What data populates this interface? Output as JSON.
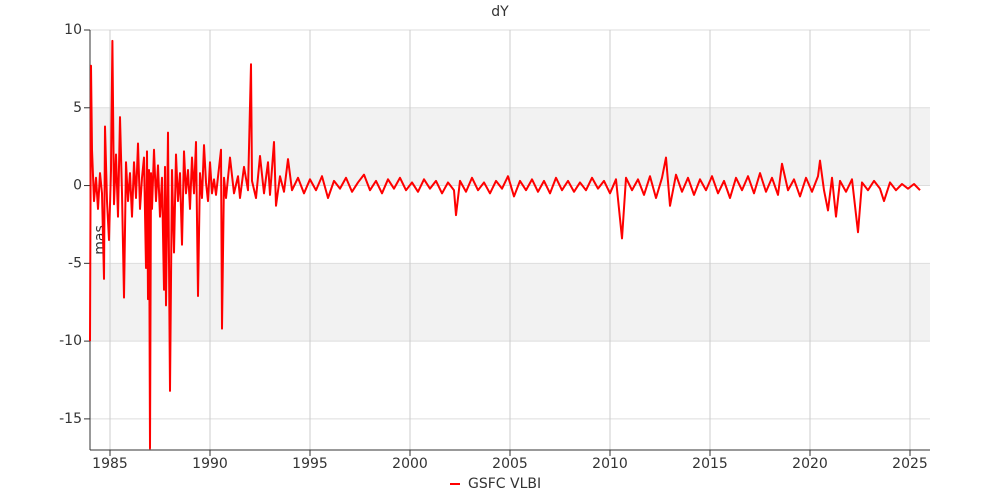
{
  "chart_data": {
    "type": "line",
    "title": "dY",
    "y_label": "mas",
    "xlim": [
      1984,
      2026
    ],
    "xticks": [
      1985,
      1990,
      1995,
      2000,
      2005,
      2010,
      2015,
      2020,
      2025
    ],
    "ylim": [
      -17,
      10
    ],
    "yticks": [
      -15,
      -10,
      -5,
      0,
      5,
      10
    ],
    "grid": true,
    "legend": "bottom",
    "series": [
      {
        "name": "GSFC VLBI",
        "color": "#ff0000",
        "x": [
          1984.0,
          1984.05,
          1984.1,
          1984.2,
          1984.3,
          1984.4,
          1984.5,
          1984.6,
          1984.7,
          1984.75,
          1984.85,
          1984.95,
          1985.05,
          1985.12,
          1985.2,
          1985.3,
          1985.4,
          1985.5,
          1985.6,
          1985.7,
          1985.8,
          1985.9,
          1986.0,
          1986.1,
          1986.2,
          1986.3,
          1986.4,
          1986.5,
          1986.6,
          1986.7,
          1986.8,
          1986.85,
          1986.9,
          1986.95,
          1987.0,
          1987.05,
          1987.1,
          1987.2,
          1987.3,
          1987.4,
          1987.5,
          1987.6,
          1987.7,
          1987.75,
          1987.8,
          1987.9,
          1988.0,
          1988.1,
          1988.2,
          1988.3,
          1988.4,
          1988.5,
          1988.6,
          1988.7,
          1988.8,
          1988.9,
          1989.0,
          1989.1,
          1989.2,
          1989.3,
          1989.4,
          1989.5,
          1989.6,
          1989.7,
          1989.8,
          1989.9,
          1990.0,
          1990.1,
          1990.2,
          1990.3,
          1990.55,
          1990.6,
          1990.7,
          1990.8,
          1991.0,
          1991.2,
          1991.4,
          1991.5,
          1991.7,
          1991.9,
          1992.05,
          1992.1,
          1992.3,
          1992.5,
          1992.7,
          1992.9,
          1993.0,
          1993.2,
          1993.3,
          1993.5,
          1993.7,
          1993.9,
          1994.1,
          1994.4,
          1994.7,
          1995.0,
          1995.3,
          1995.6,
          1995.9,
          1996.2,
          1996.5,
          1996.8,
          1997.1,
          1997.4,
          1997.7,
          1998.0,
          1998.3,
          1998.6,
          1998.9,
          1999.2,
          1999.5,
          1999.8,
          2000.1,
          2000.4,
          2000.7,
          2001.0,
          2001.3,
          2001.6,
          2001.9,
          2002.2,
          2002.3,
          2002.5,
          2002.8,
          2003.1,
          2003.4,
          2003.7,
          2004.0,
          2004.3,
          2004.6,
          2004.9,
          2005.2,
          2005.5,
          2005.8,
          2006.1,
          2006.4,
          2006.7,
          2007.0,
          2007.3,
          2007.6,
          2007.9,
          2008.2,
          2008.5,
          2008.8,
          2009.1,
          2009.4,
          2009.7,
          2010.0,
          2010.3,
          2010.6,
          2010.8,
          2011.1,
          2011.4,
          2011.7,
          2012.0,
          2012.3,
          2012.6,
          2012.8,
          2013.0,
          2013.3,
          2013.6,
          2013.9,
          2014.2,
          2014.5,
          2014.8,
          2015.1,
          2015.4,
          2015.7,
          2016.0,
          2016.3,
          2016.6,
          2016.9,
          2017.2,
          2017.5,
          2017.8,
          2018.1,
          2018.4,
          2018.6,
          2018.9,
          2019.2,
          2019.5,
          2019.8,
          2020.1,
          2020.4,
          2020.5,
          2020.7,
          2020.9,
          2021.1,
          2021.3,
          2021.5,
          2021.8,
          2022.1,
          2022.4,
          2022.6,
          2022.9,
          2023.2,
          2023.5,
          2023.7,
          2024.0,
          2024.3,
          2024.6,
          2024.9,
          2025.2,
          2025.5
        ],
        "values": [
          -10,
          7.7,
          2.3,
          -1,
          0.5,
          -1.5,
          0.8,
          -0.5,
          -6,
          3.8,
          -1,
          -3.5,
          1,
          9.3,
          -1.2,
          2,
          -2,
          4.4,
          -0.5,
          -7.2,
          1.5,
          -1,
          0.8,
          -2,
          1.5,
          -0.8,
          2.7,
          -1.5,
          0.5,
          1.8,
          -5.3,
          2.2,
          -7.3,
          1,
          -16.9,
          0.8,
          -1.5,
          2.3,
          -1,
          1.3,
          -2,
          0.5,
          -6.7,
          1.2,
          -7.7,
          3.4,
          -13.2,
          1,
          -4.3,
          2,
          -1,
          0.8,
          -3.8,
          2.2,
          -0.5,
          1,
          -1.5,
          1.8,
          -0.5,
          2.8,
          -7.1,
          0.8,
          -0.8,
          2.6,
          0.2,
          -1,
          1.5,
          -0.5,
          0.4,
          -0.6,
          2.3,
          -9.2,
          0.5,
          -0.8,
          1.8,
          -0.5,
          0.6,
          -0.8,
          1.2,
          -0.3,
          7.8,
          0.3,
          -0.8,
          1.9,
          -0.5,
          1.5,
          -0.6,
          2.8,
          -1.3,
          0.6,
          -0.4,
          1.7,
          -0.3,
          0.5,
          -0.5,
          0.4,
          -0.3,
          0.6,
          -0.8,
          0.3,
          -0.2,
          0.5,
          -0.4,
          0.2,
          0.7,
          -0.3,
          0.3,
          -0.5,
          0.4,
          -0.2,
          0.5,
          -0.3,
          0.2,
          -0.4,
          0.4,
          -0.2,
          0.3,
          -0.5,
          0.2,
          -0.3,
          -1.9,
          0.3,
          -0.4,
          0.5,
          -0.3,
          0.2,
          -0.5,
          0.3,
          -0.2,
          0.6,
          -0.7,
          0.3,
          -0.3,
          0.4,
          -0.4,
          0.3,
          -0.5,
          0.5,
          -0.3,
          0.3,
          -0.4,
          0.2,
          -0.3,
          0.5,
          -0.2,
          0.3,
          -0.5,
          0.4,
          -3.4,
          0.5,
          -0.3,
          0.4,
          -0.6,
          0.6,
          -0.8,
          0.5,
          1.8,
          -1.3,
          0.7,
          -0.4,
          0.5,
          -0.6,
          0.4,
          -0.3,
          0.6,
          -0.5,
          0.3,
          -0.8,
          0.5,
          -0.3,
          0.6,
          -0.5,
          0.8,
          -0.4,
          0.5,
          -0.6,
          1.4,
          -0.3,
          0.4,
          -0.7,
          0.5,
          -0.4,
          0.6,
          1.6,
          -0.3,
          -1.6,
          0.5,
          -2,
          0.3,
          -0.4,
          0.4,
          -3,
          0.2,
          -0.3,
          0.3,
          -0.2,
          -1,
          0.2,
          -0.3,
          0.1,
          -0.2,
          0.1,
          -0.3
        ]
      }
    ]
  }
}
